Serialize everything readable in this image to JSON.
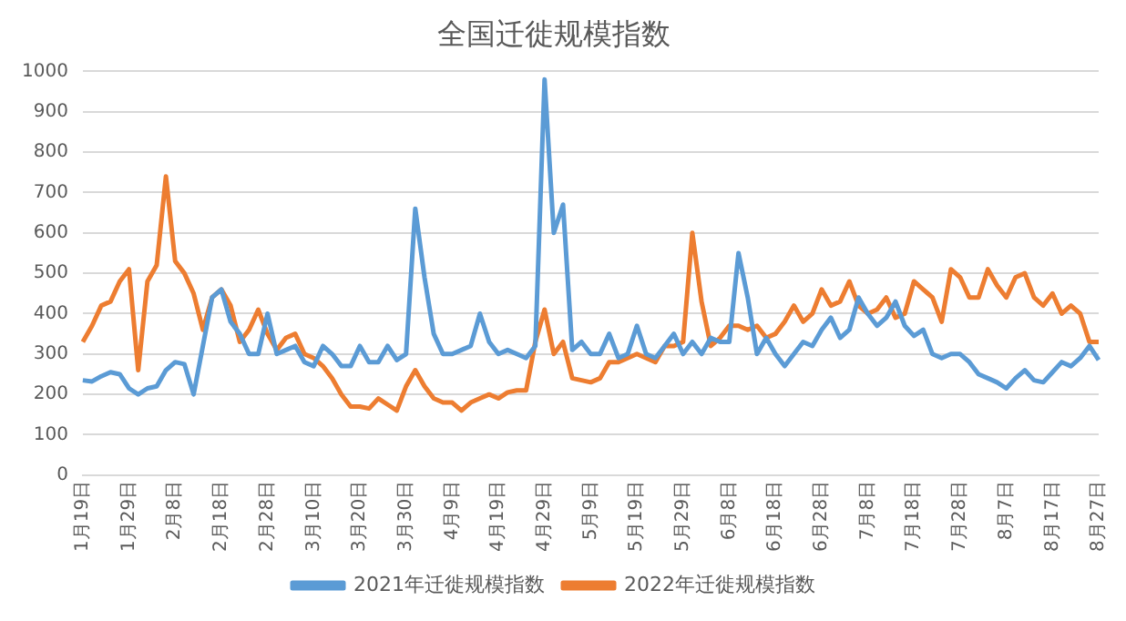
{
  "chart_data": {
    "type": "line",
    "title": "全国迁徙规模指数",
    "categories": [
      "1月19日",
      null,
      null,
      null,
      null,
      "1月29日",
      null,
      null,
      null,
      null,
      "2月8日",
      null,
      null,
      null,
      null,
      "2月18日",
      null,
      null,
      null,
      null,
      "2月28日",
      null,
      null,
      null,
      null,
      "3月10日",
      null,
      null,
      null,
      null,
      "3月20日",
      null,
      null,
      null,
      null,
      "3月30日",
      null,
      null,
      null,
      null,
      "4月9日",
      null,
      null,
      null,
      null,
      "4月19日",
      null,
      null,
      null,
      null,
      "4月29日",
      null,
      null,
      null,
      null,
      "5月9日",
      null,
      null,
      null,
      null,
      "5月19日",
      null,
      null,
      null,
      null,
      "5月29日",
      null,
      null,
      null,
      null,
      "6月8日",
      null,
      null,
      null,
      null,
      "6月18日",
      null,
      null,
      null,
      null,
      "6月28日",
      null,
      null,
      null,
      null,
      "7月8日",
      null,
      null,
      null,
      null,
      "7月18日",
      null,
      null,
      null,
      null,
      "7月28日",
      null,
      null,
      null,
      null,
      "8月7日",
      null,
      null,
      null,
      null,
      "8月17日",
      null,
      null,
      null,
      null,
      "8月27日"
    ],
    "series": [
      {
        "name": "2021年迁徙规模指数",
        "color": "#5b9bd5",
        "values": [
          235,
          232,
          245,
          255,
          250,
          215,
          200,
          215,
          220,
          260,
          280,
          275,
          200,
          320,
          440,
          460,
          380,
          350,
          300,
          300,
          400,
          300,
          310,
          320,
          280,
          270,
          320,
          300,
          270,
          270,
          320,
          280,
          280,
          320,
          285,
          300,
          660,
          490,
          350,
          300,
          300,
          310,
          320,
          400,
          330,
          300,
          310,
          300,
          290,
          320,
          980,
          600,
          670,
          310,
          330,
          300,
          300,
          350,
          290,
          300,
          370,
          300,
          290,
          320,
          350,
          300,
          330,
          300,
          340,
          330,
          330,
          550,
          440,
          300,
          340,
          300,
          270,
          300,
          330,
          320,
          360,
          390,
          340,
          360,
          440,
          400,
          370,
          390,
          430,
          370,
          345,
          360,
          300,
          290,
          300,
          300,
          280,
          250,
          240,
          230,
          215,
          240,
          260,
          235,
          230,
          255,
          280,
          270,
          290,
          320,
          285
        ]
      },
      {
        "name": "2022年迁徙规模指数",
        "color": "#ed7d31",
        "values": [
          330,
          370,
          420,
          430,
          480,
          510,
          260,
          480,
          520,
          740,
          530,
          500,
          450,
          360,
          440,
          460,
          420,
          330,
          360,
          410,
          350,
          310,
          340,
          350,
          300,
          290,
          270,
          240,
          200,
          170,
          170,
          165,
          190,
          175,
          160,
          220,
          260,
          220,
          190,
          180,
          180,
          160,
          180,
          190,
          200,
          190,
          205,
          210,
          210,
          330,
          410,
          300,
          330,
          240,
          235,
          230,
          240,
          280,
          280,
          290,
          300,
          290,
          280,
          320,
          320,
          330,
          600,
          430,
          320,
          340,
          370,
          370,
          360,
          370,
          340,
          350,
          380,
          420,
          380,
          400,
          460,
          420,
          430,
          480,
          420,
          400,
          410,
          440,
          390,
          400,
          480,
          460,
          440,
          380,
          510,
          490,
          440,
          440,
          510,
          470,
          440,
          490,
          500,
          440,
          420,
          450,
          400,
          420,
          400,
          330,
          330
        ]
      }
    ],
    "ylim": [
      0,
      1000
    ],
    "yticks": [
      0,
      100,
      200,
      300,
      400,
      500,
      600,
      700,
      800,
      900,
      1000
    ],
    "grid": "y",
    "legend": "bottom"
  }
}
